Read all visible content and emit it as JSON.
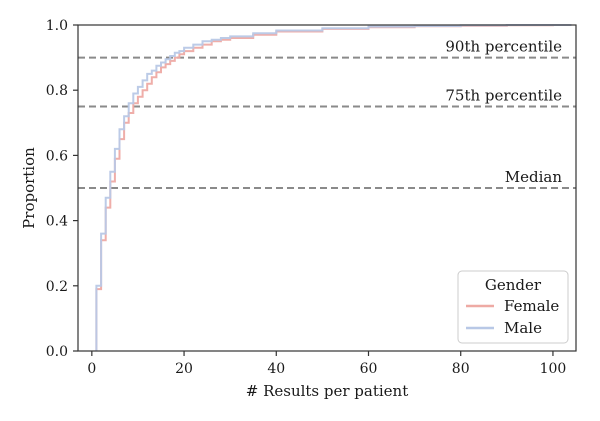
{
  "chart_data": {
    "type": "line",
    "title": "",
    "xlabel": "# Results per patient",
    "ylabel": "Proportion",
    "xlim": [
      -3,
      105
    ],
    "ylim": [
      0,
      1.0
    ],
    "xticks": [
      0,
      20,
      40,
      60,
      80,
      100
    ],
    "yticks": [
      0.0,
      0.2,
      0.4,
      0.6,
      0.8,
      1.0
    ],
    "xtick_labels": [
      "0",
      "20",
      "40",
      "60",
      "80",
      "100"
    ],
    "ytick_labels": [
      "0.0",
      "0.2",
      "0.4",
      "0.6",
      "0.8",
      "1.0"
    ],
    "grid": false,
    "legend": {
      "title": "Gender",
      "placement": "lower right"
    },
    "reference_lines": [
      {
        "y": 0.9,
        "label": "90th percentile"
      },
      {
        "y": 0.75,
        "label": "75th percentile"
      },
      {
        "y": 0.5,
        "label": "Median"
      }
    ],
    "series": [
      {
        "name": "Female",
        "color": "#eeaaa4",
        "x": [
          1,
          2,
          3,
          4,
          5,
          6,
          7,
          8,
          9,
          10,
          11,
          12,
          13,
          14,
          15,
          16,
          17,
          18,
          19,
          20,
          22,
          24,
          26,
          28,
          30,
          35,
          40,
          50,
          60,
          70,
          80,
          90,
          100
        ],
        "y": [
          0.19,
          0.34,
          0.44,
          0.52,
          0.59,
          0.65,
          0.7,
          0.73,
          0.76,
          0.78,
          0.8,
          0.82,
          0.84,
          0.855,
          0.87,
          0.88,
          0.89,
          0.9,
          0.91,
          0.92,
          0.93,
          0.94,
          0.95,
          0.955,
          0.96,
          0.97,
          0.98,
          0.988,
          0.993,
          0.996,
          0.998,
          0.999,
          1.0
        ]
      },
      {
        "name": "Male",
        "color": "#b8c8e6",
        "x": [
          1,
          2,
          3,
          4,
          5,
          6,
          7,
          8,
          9,
          10,
          11,
          12,
          13,
          14,
          15,
          16,
          17,
          18,
          19,
          20,
          22,
          24,
          26,
          28,
          30,
          35,
          40,
          50,
          60,
          70,
          80,
          90,
          100
        ],
        "y": [
          0.2,
          0.36,
          0.47,
          0.55,
          0.62,
          0.68,
          0.72,
          0.76,
          0.79,
          0.81,
          0.83,
          0.85,
          0.86,
          0.875,
          0.885,
          0.895,
          0.905,
          0.915,
          0.92,
          0.93,
          0.94,
          0.95,
          0.955,
          0.96,
          0.965,
          0.975,
          0.983,
          0.99,
          0.995,
          0.997,
          0.999,
          1.0,
          1.0
        ]
      }
    ]
  }
}
